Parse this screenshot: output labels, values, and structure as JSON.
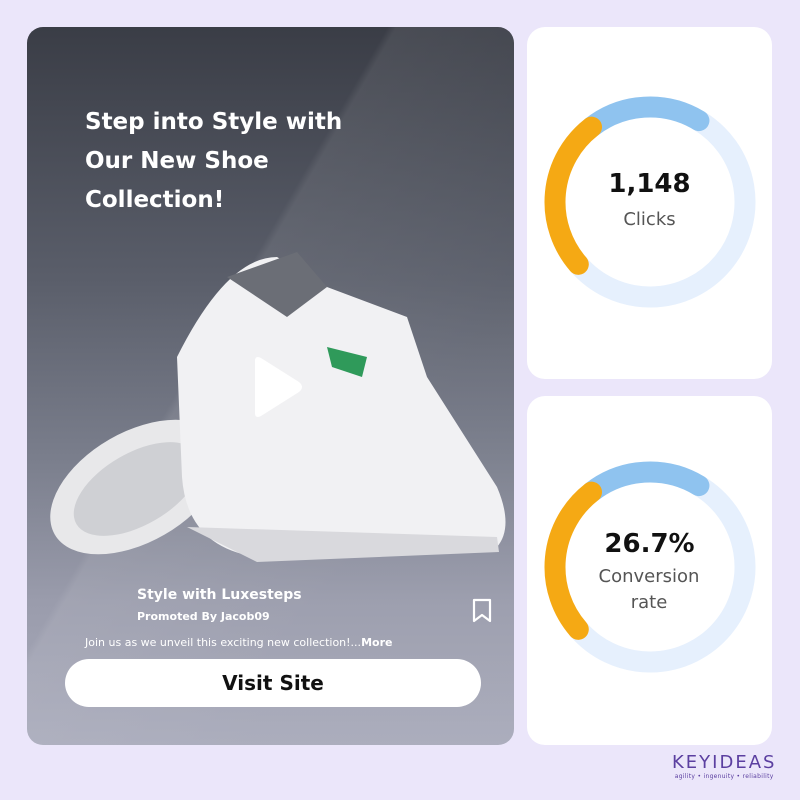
{
  "ad": {
    "headline": "Step into Style with Our New Shoe Collection!",
    "brand_name": "Style with Luxesteps",
    "promoted_by": "Promoted By Jacob09",
    "description": "Join us as we unveil this exciting new collection!...",
    "more_label": "More",
    "cta_label": "Visit Site",
    "icons": {
      "play": "play-icon",
      "bookmark": "bookmark-icon"
    }
  },
  "stats": [
    {
      "value": "1,148",
      "label": "Clicks"
    },
    {
      "value": "26.7%",
      "label": "Conversion rate"
    }
  ],
  "colors": {
    "orange": "#f5a914",
    "blue": "#8fc3ef",
    "pale": "#e6f0fd",
    "background": "#ebe6fa"
  },
  "logo": {
    "name": "KEYIDEAS",
    "tagline": "agility • ingenuity • reliability"
  }
}
